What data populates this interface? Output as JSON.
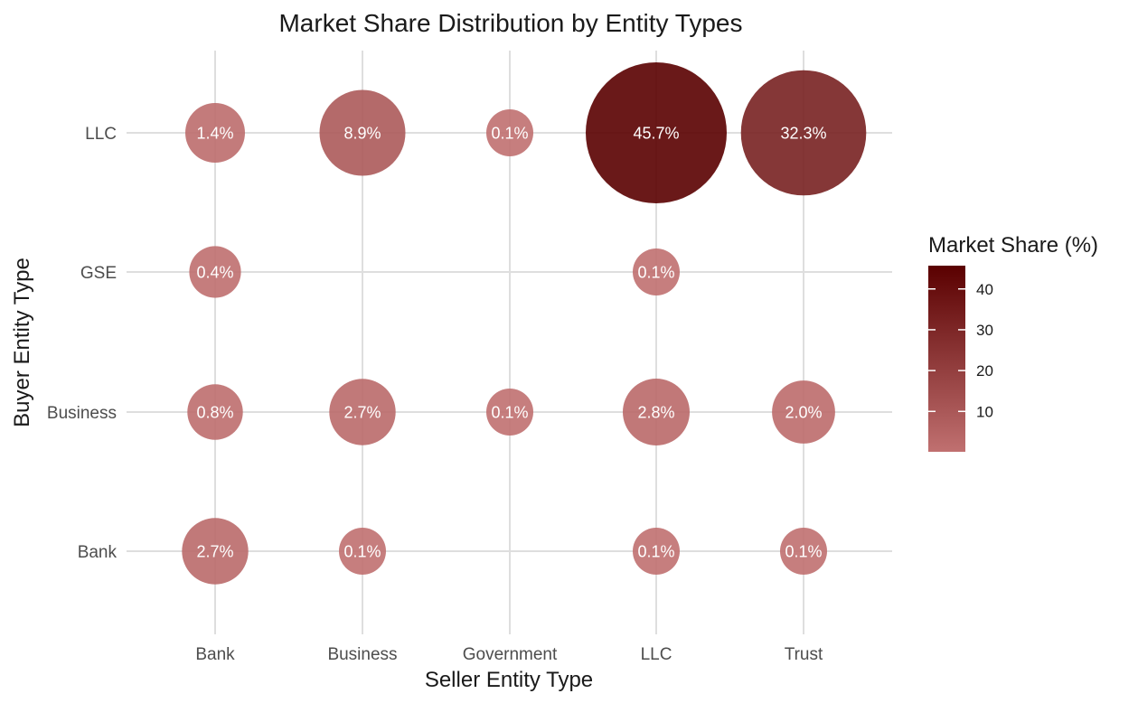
{
  "chart_data": {
    "type": "scatter",
    "title": "Market Share Distribution by Entity Types",
    "xlabel": "Seller Entity Type",
    "ylabel": "Buyer Entity Type",
    "x_categories": [
      "Bank",
      "Business",
      "Government",
      "LLC",
      "Trust"
    ],
    "y_categories": [
      "Bank",
      "Business",
      "GSE",
      "LLC"
    ],
    "points": [
      {
        "seller": "Bank",
        "buyer": "LLC",
        "value": 1.4,
        "label": "1.4%"
      },
      {
        "seller": "Business",
        "buyer": "LLC",
        "value": 8.9,
        "label": "8.9%"
      },
      {
        "seller": "Government",
        "buyer": "LLC",
        "value": 0.1,
        "label": "0.1%"
      },
      {
        "seller": "LLC",
        "buyer": "LLC",
        "value": 45.7,
        "label": "45.7%"
      },
      {
        "seller": "Trust",
        "buyer": "LLC",
        "value": 32.3,
        "label": "32.3%"
      },
      {
        "seller": "Bank",
        "buyer": "GSE",
        "value": 0.4,
        "label": "0.4%"
      },
      {
        "seller": "LLC",
        "buyer": "GSE",
        "value": 0.1,
        "label": "0.1%"
      },
      {
        "seller": "Bank",
        "buyer": "Business",
        "value": 0.8,
        "label": "0.8%"
      },
      {
        "seller": "Business",
        "buyer": "Business",
        "value": 2.7,
        "label": "2.7%"
      },
      {
        "seller": "Government",
        "buyer": "Business",
        "value": 0.1,
        "label": "0.1%"
      },
      {
        "seller": "LLC",
        "buyer": "Business",
        "value": 2.8,
        "label": "2.8%"
      },
      {
        "seller": "Trust",
        "buyer": "Business",
        "value": 2.0,
        "label": "2.0%"
      },
      {
        "seller": "Bank",
        "buyer": "Bank",
        "value": 2.7,
        "label": "2.7%"
      },
      {
        "seller": "Business",
        "buyer": "Bank",
        "value": 0.1,
        "label": "0.1%"
      },
      {
        "seller": "LLC",
        "buyer": "Bank",
        "value": 0.1,
        "label": "0.1%"
      },
      {
        "seller": "Trust",
        "buyer": "Bank",
        "value": 0.1,
        "label": "0.1%"
      }
    ],
    "legend": {
      "title": "Market Share (%)",
      "ticks": [
        10,
        20,
        30,
        40
      ],
      "range": [
        0.1,
        45.7
      ],
      "position": "right"
    },
    "colors": {
      "low": "#c07070",
      "high": "#5a0000"
    },
    "grid": true
  }
}
